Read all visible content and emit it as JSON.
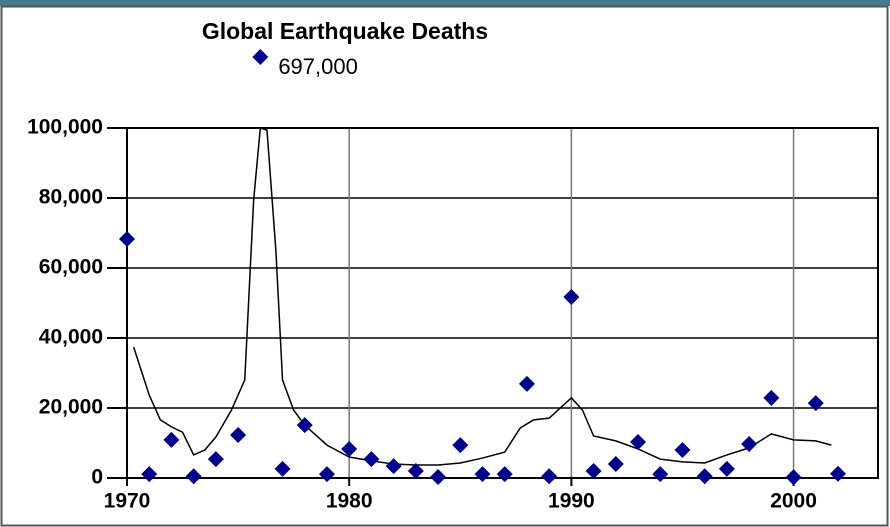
{
  "chart_data": {
    "type": "scatter",
    "title": "Global Earthquake Deaths",
    "xlim": [
      1970,
      2003.8
    ],
    "xticks": [
      1970,
      1980,
      1990,
      2000
    ],
    "ylim": [
      0,
      100000
    ],
    "yticks": [
      0,
      {
        "value": 20000,
        "label": "20,000"
      },
      {
        "value": 40000,
        "label": "40,000"
      },
      {
        "value": 60000,
        "label": "60,000"
      },
      {
        "value": 80000,
        "label": "80,000"
      },
      {
        "value": 100000,
        "label": "100,000"
      }
    ],
    "grid": true,
    "points": {
      "color": "#00008b",
      "x": [
        1970,
        1971,
        1972,
        1973,
        1974,
        1975,
        1977,
        1978,
        1979,
        1980,
        1981,
        1982,
        1983,
        1984,
        1985,
        1986,
        1987,
        1988,
        1989,
        1990,
        1991,
        1992,
        1993,
        1994,
        1995,
        1996,
        1997,
        1998,
        1999,
        2000,
        2001,
        2002
      ],
      "values": [
        68300,
        1100,
        10900,
        500,
        5400,
        12300,
        2600,
        15100,
        1100,
        8300,
        5400,
        3400,
        2000,
        300,
        9400,
        1100,
        1100,
        26900,
        500,
        51700,
        2000,
        4000,
        10300,
        1100,
        8000,
        500,
        2600,
        9700,
        22900,
        200,
        21400,
        1200
      ]
    },
    "offscale": {
      "x": 1976,
      "value": 697000,
      "value_label": "697,000"
    },
    "trend": {
      "color": "#000000",
      "x": [
        1970.3,
        1971,
        1971.5,
        1972,
        1972.5,
        1973,
        1973.5,
        1974,
        1974.7,
        1975.3,
        1975.7,
        1976,
        1976.3,
        1976.7,
        1977,
        1977.5,
        1978,
        1979,
        1980,
        1981,
        1982,
        1983,
        1984,
        1985,
        1986,
        1987,
        1987.7,
        1988.3,
        1989,
        1990,
        1990.5,
        1991,
        1992,
        1993,
        1994,
        1995,
        1996,
        1997,
        1998,
        1999,
        2000,
        2001,
        2001.7
      ],
      "values": [
        37400,
        23700,
        16600,
        14600,
        13100,
        6600,
        8000,
        11700,
        19400,
        28000,
        79400,
        100000,
        99400,
        65100,
        28000,
        19400,
        15100,
        9400,
        6000,
        4900,
        4000,
        3700,
        3700,
        4300,
        5700,
        7400,
        14300,
        16600,
        17100,
        22900,
        19400,
        12000,
        10600,
        8300,
        5400,
        4600,
        4300,
        6600,
        8600,
        12600,
        10900,
        10600,
        9400
      ]
    }
  }
}
